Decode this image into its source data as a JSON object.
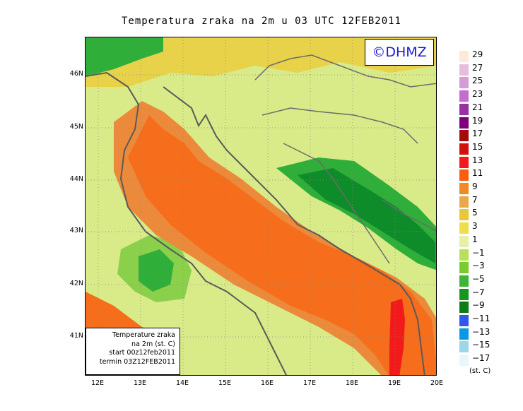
{
  "title": "Temperatura zraka na 2m u 03 UTC 12FEB2011",
  "copyright": "©DHMZ",
  "info_box": {
    "line1": "Temperature zraka",
    "line2": "na 2m (st. C)",
    "line3": "start 00z12feb2011",
    "line4": "termin 03Z12FEB2011"
  },
  "lat_labels": [
    "46N",
    "45N",
    "44N",
    "43N",
    "42N",
    "41N"
  ],
  "lon_labels": [
    "12E",
    "13E",
    "14E",
    "15E",
    "16E",
    "17E",
    "18E",
    "19E",
    "20E"
  ],
  "legend": {
    "unit": "(st. C)",
    "labels": [
      "29",
      "27",
      "25",
      "23",
      "21",
      "19",
      "17",
      "15",
      "13",
      "11",
      "9",
      "7",
      "5",
      "3",
      "1",
      "−1",
      "−3",
      "−5",
      "−7",
      "−9",
      "−11",
      "−13",
      "−15",
      "−17"
    ],
    "colors": [
      "#fde8da",
      "#e6bedc",
      "#d79bd8",
      "#c46ccf",
      "#9a2fa6",
      "#7d007d",
      "#a50a0a",
      "#d10f0f",
      "#f21a1a",
      "#f95d10",
      "#f08a24",
      "#e9a84a",
      "#e6c838",
      "#eede4e",
      "#e7f0a6",
      "#b8e05c",
      "#7acb2e",
      "#3db634",
      "#14971e",
      "#0d7c17",
      "#3357e8",
      "#0c98e4",
      "#9dd6e8",
      "#e7f7fb"
    ]
  },
  "colors": {
    "sea": "#f66d1b",
    "coastal_sea": "#eb8a3a",
    "warm_land": "#e8d24a",
    "cool_land": "#d9ea88",
    "cold_land": "#8bd04a",
    "very_cold": "#2fae3a",
    "coldest": "#0f8c2a",
    "hot_spot": "#f21a1a",
    "border": "#6b6b6b",
    "coast": "#5a5a5a"
  }
}
